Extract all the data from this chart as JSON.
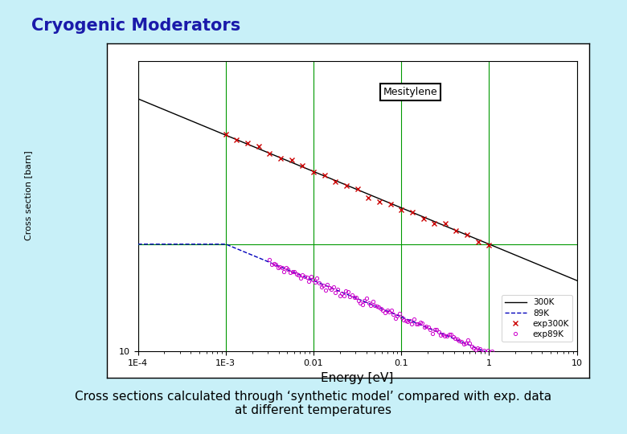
{
  "title": "Cryogenic Moderators",
  "subtitle": "Cross sections calculated through ‘synthetic model’ compared with exp. data\nat different temperatures",
  "plot_label": "Mesitylene",
  "xlabel": "Energy [eV]",
  "background_color": "#c8f0f8",
  "plot_bg_color": "#ffffff",
  "title_color": "#1a1aaa",
  "title_fontsize": 15,
  "subtitle_fontsize": 11,
  "line_300K_color": "#000000",
  "line_89K_color": "#0000bb",
  "exp300K_color": "#cc0000",
  "exp89K_color": "#cc00cc",
  "grid_color": "#009900",
  "legend_labels": [
    "300K",
    "89K",
    "exp300K",
    "exp89K"
  ],
  "yaxis_label_text": "Cross section [barn]"
}
